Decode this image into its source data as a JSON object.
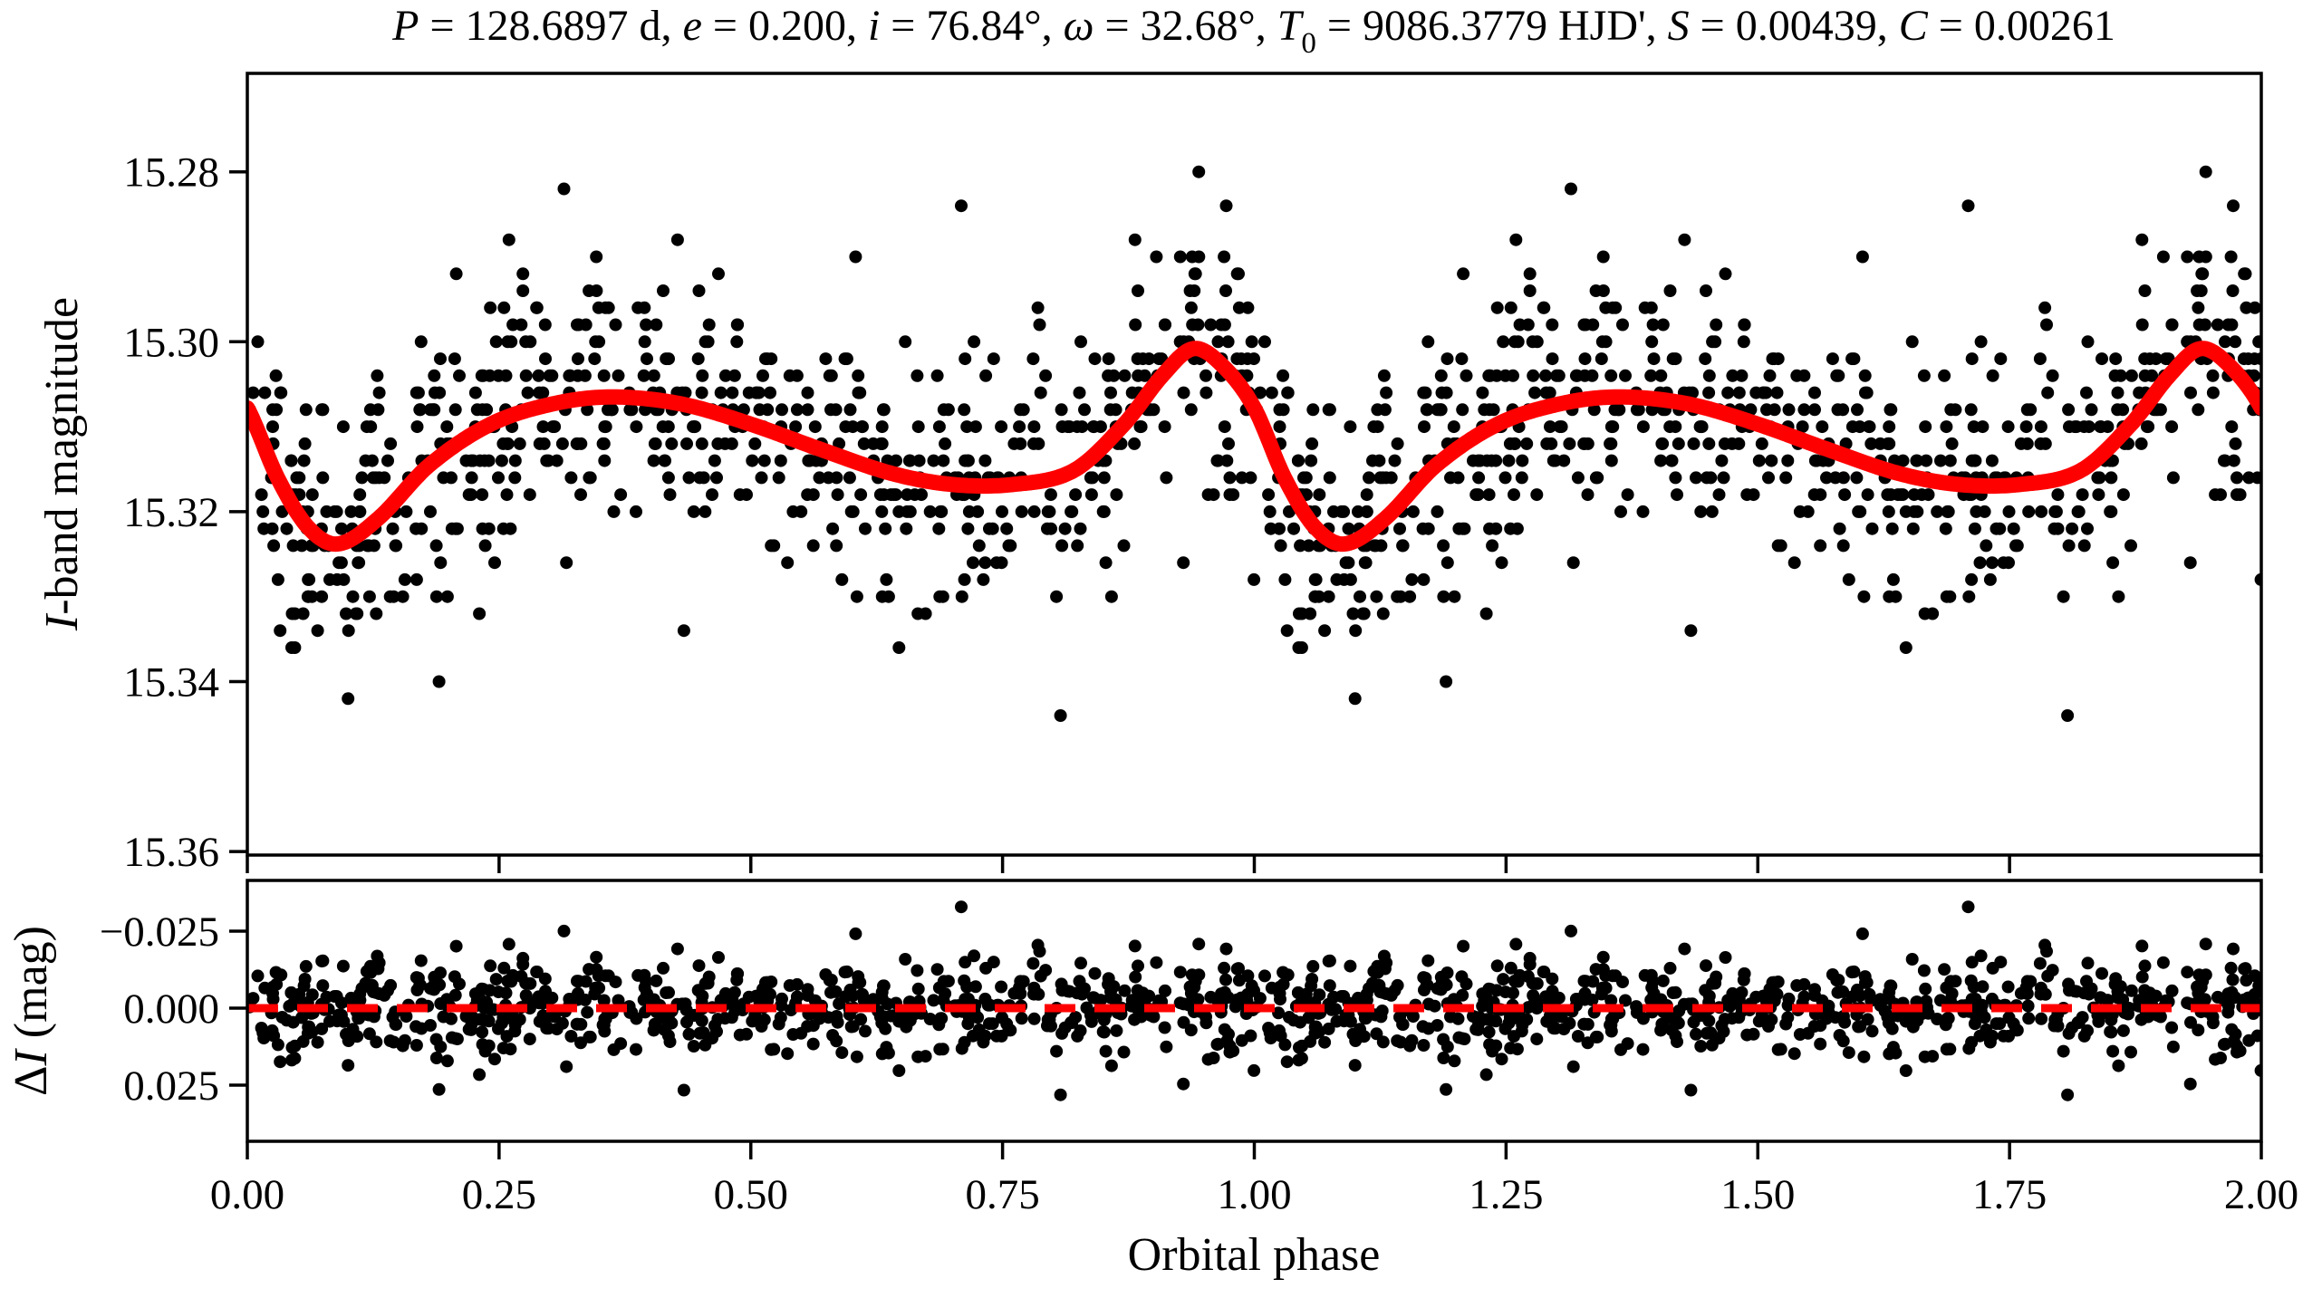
{
  "figure": {
    "title_plain": "P = 128.6897 d, e = 0.200, i = 76.84°, ω = 32.68°, T0 = 9086.3779 HJD', S = 0.00439, C = 0.00261",
    "title_segments": [
      {
        "t": "P",
        "i": 1
      },
      {
        "t": " = 128.6897 d, "
      },
      {
        "t": "e",
        "i": 1
      },
      {
        "t": " = 0.200, "
      },
      {
        "t": "i",
        "i": 1
      },
      {
        "t": " = 76.84°, "
      },
      {
        "t": "ω",
        "i": 1
      },
      {
        "t": " = 32.68°, "
      },
      {
        "t": "T",
        "i": 1
      },
      {
        "t": "0",
        "sub": 1
      },
      {
        "t": " = 9086.3779 HJD', "
      },
      {
        "t": "S",
        "i": 1
      },
      {
        "t": " = 0.00439, "
      },
      {
        "t": "C",
        "i": 1
      },
      {
        "t": " = 0.00261"
      }
    ],
    "colors": {
      "marker": "#000000",
      "model_curve": "#ff0000",
      "zero_line": "#ff0000",
      "axes": "#000000",
      "background": "#ffffff"
    }
  },
  "chart_data": [
    {
      "id": "magnitude-panel",
      "type": "scatter",
      "ylabel": "I-band magnitude",
      "ylabel_segments": [
        {
          "t": "I",
          "i": 1
        },
        {
          "t": "-band magnitude"
        }
      ],
      "xlim": [
        0.0,
        2.0
      ],
      "ylim_bottom_top": [
        15.3604,
        15.2684
      ],
      "y_axis_inverted_magnitudes": true,
      "ytick_labels": [
        "15.28",
        "15.30",
        "15.32",
        "15.34",
        "15.36"
      ],
      "ytick_values": [
        15.28,
        15.3,
        15.32,
        15.34,
        15.36
      ],
      "xtick_values": [
        0,
        0.25,
        0.5,
        0.75,
        1.0,
        1.25,
        1.5,
        1.75,
        2.0
      ],
      "grid": false,
      "legend": "none",
      "marker_color": "#000000",
      "model_curve": {
        "name": "orbital-model-curve",
        "color": "#ff0000",
        "period_points": [
          [
            0.0,
            15.3078
          ],
          [
            0.03,
            15.316
          ],
          [
            0.06,
            15.3218
          ],
          [
            0.09,
            15.3238
          ],
          [
            0.13,
            15.3208
          ],
          [
            0.18,
            15.3146
          ],
          [
            0.24,
            15.3098
          ],
          [
            0.3,
            15.3074
          ],
          [
            0.36,
            15.3065
          ],
          [
            0.43,
            15.3073
          ],
          [
            0.5,
            15.3097
          ],
          [
            0.57,
            15.3127
          ],
          [
            0.64,
            15.3155
          ],
          [
            0.7,
            15.3168
          ],
          [
            0.76,
            15.3168
          ],
          [
            0.82,
            15.3152
          ],
          [
            0.87,
            15.3098
          ],
          [
            0.91,
            15.3038
          ],
          [
            0.94,
            15.3008
          ],
          [
            0.97,
            15.303
          ]
        ],
        "curve_features": {
          "eclipse_minimum": {
            "phase": 0.09,
            "mag": 15.3238
          },
          "broad_maximum": {
            "phase": 0.36,
            "mag": 15.3065
          },
          "shallow_minimum": {
            "phase": 0.72,
            "mag": 15.3168
          },
          "sharp_maximum": {
            "phase": 0.94,
            "mag": 15.3008
          }
        }
      },
      "scatter_model": {
        "n_base_points": 680,
        "noise_sigma_mag": 0.0075,
        "outlier_fraction": 0.045,
        "outlier_sigma_mag": 0.016,
        "max_abs_deviation_mag": 0.034,
        "quantize_mag": 0.002,
        "seed": 90863779,
        "each_point_plotted_at_phase_and_phase_plus_one": true
      }
    },
    {
      "id": "residual-panel",
      "type": "scatter",
      "ylabel": "ΔI (mag)",
      "ylabel_segments": [
        {
          "t": "Δ"
        },
        {
          "t": "I",
          "i": 1
        },
        {
          "t": " (mag)"
        }
      ],
      "xlabel": "Orbital phase",
      "xtick_labels": [
        "0.00",
        "0.25",
        "0.50",
        "0.75",
        "1.00",
        "1.25",
        "1.50",
        "1.75",
        "2.00"
      ],
      "xtick_values": [
        0,
        0.25,
        0.5,
        0.75,
        1.0,
        1.25,
        1.5,
        1.75,
        2.0
      ],
      "ylim_bottom_top": [
        0.0432,
        -0.0415
      ],
      "ytick_labels": [
        "−0.025",
        "0.000",
        "0.025"
      ],
      "ytick_values": [
        -0.025,
        0.0,
        0.025
      ],
      "grid": false,
      "marker_color": "#000000",
      "zero_line": {
        "name": "residual-zero-line",
        "color": "#ff0000",
        "style": "dashed",
        "value": 0.0
      },
      "residuals": "observed magnitude minus model, same base points as magnitude panel"
    }
  ]
}
